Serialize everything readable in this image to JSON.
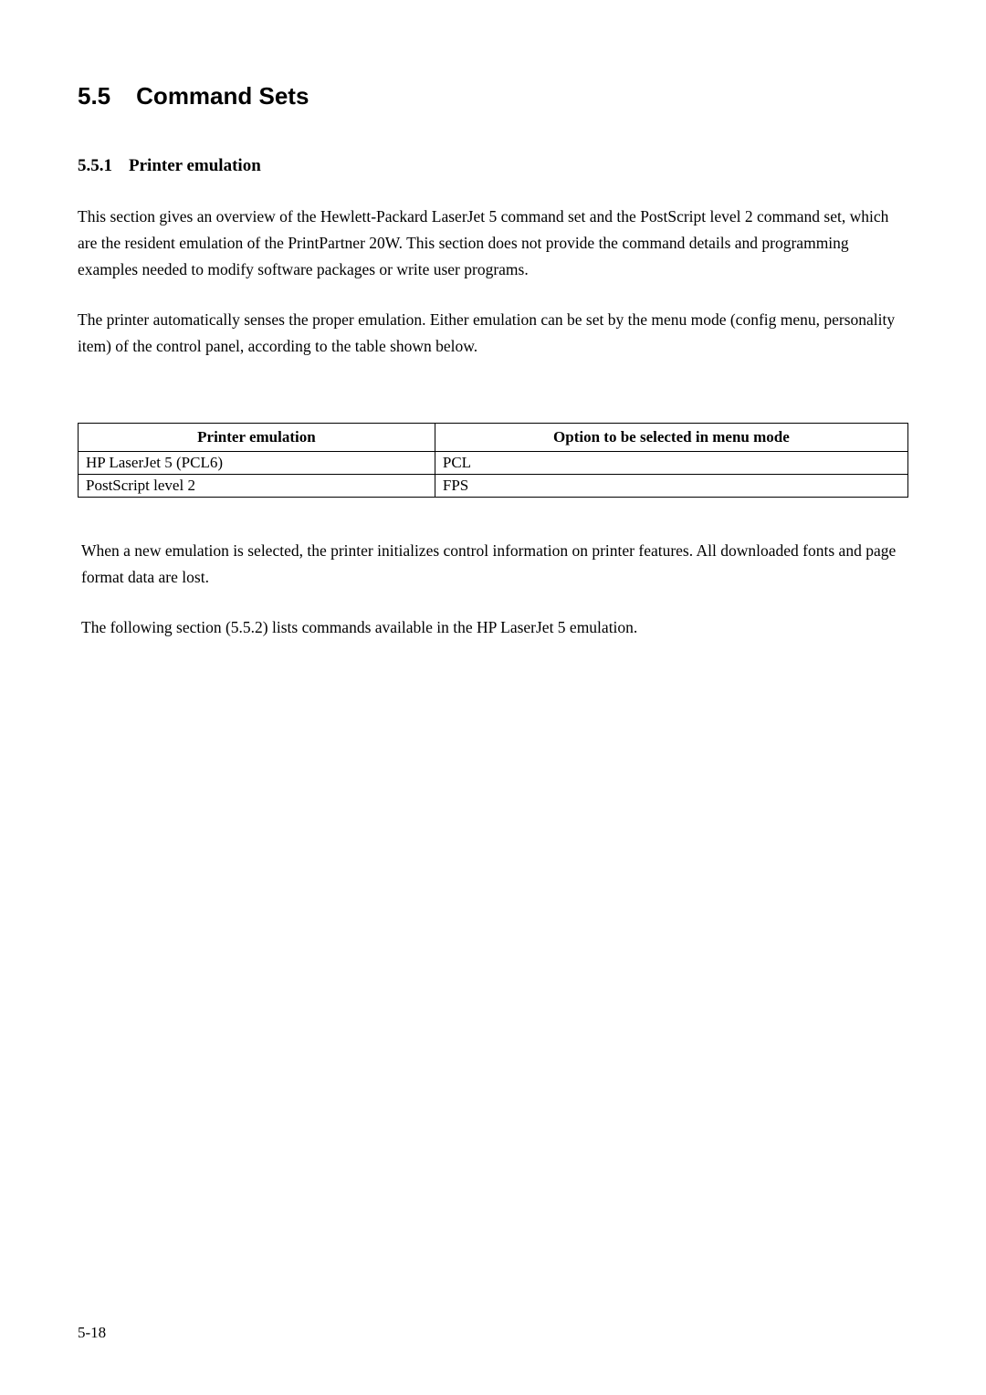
{
  "heading": {
    "number": "5.5",
    "title": "Command Sets"
  },
  "subsection": {
    "number": "5.5.1",
    "title": "Printer emulation"
  },
  "paragraphs": {
    "p1": "This section gives an overview of the Hewlett-Packard LaserJet 5 command set and the PostScript level 2 command set, which are the resident emulation of the PrintPartner 20W.  This section does not provide the command details and programming examples needed to modify software packages or write user programs.",
    "p2": "The printer automatically senses the proper emulation.  Either emulation can be set by the menu mode (config menu, personality item) of the control panel, according to the table shown below.",
    "p3": "When a new emulation is selected, the printer initializes control information on printer features.  All downloaded fonts and page format data are lost.",
    "p4": "The following section (5.5.2) lists commands available in the HP LaserJet 5 emulation."
  },
  "table": {
    "headers": {
      "col1": "Printer emulation",
      "col2": "Option to be selected in menu mode"
    },
    "rows": [
      {
        "col1": "HP LaserJet 5 (PCL6)",
        "col2": "PCL"
      },
      {
        "col1": "PostScript level 2",
        "col2": "FPS"
      }
    ]
  },
  "pageNumber": "5-18"
}
